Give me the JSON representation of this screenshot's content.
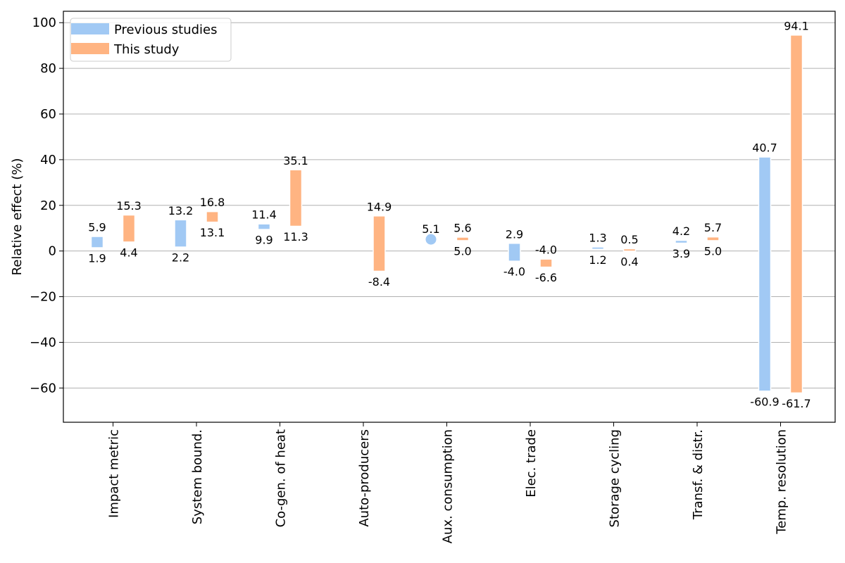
{
  "chart_data": {
    "type": "bar",
    "title": "",
    "xlabel": "",
    "ylabel": "Relative effect (%)",
    "ylim": [
      -75,
      105
    ],
    "yticks": [
      -60,
      -40,
      -20,
      0,
      20,
      40,
      60,
      80,
      100
    ],
    "ytick_labels": [
      "−60",
      "−40",
      "−20",
      "0",
      "20",
      "40",
      "60",
      "80",
      "100"
    ],
    "grid": "y",
    "legend_position": "top-left",
    "categories": [
      "Impact metric",
      "System bound.",
      "Co-gen. of heat",
      "Auto-producers",
      "Aux. consumption",
      "Elec. trade",
      "Storage cycling",
      "Transf. & distr.",
      "Temp. resolution"
    ],
    "series": [
      {
        "name": "Previous studies",
        "color": "#a1c9f4",
        "ranges": [
          {
            "low": 1.9,
            "high": 5.9,
            "low_label": "1.9",
            "high_label": "5.9"
          },
          {
            "low": 2.2,
            "high": 13.2,
            "low_label": "2.2",
            "high_label": "13.2"
          },
          {
            "low": 9.9,
            "high": 11.4,
            "low_label": "9.9",
            "high_label": "11.4"
          },
          null,
          {
            "low": 5.1,
            "high": 5.1,
            "point": true,
            "high_label": "5.1"
          },
          {
            "low": -4.0,
            "high": 2.9,
            "low_label": "-4.0",
            "high_label": "2.9"
          },
          {
            "low": 1.2,
            "high": 1.3,
            "low_label": "1.2",
            "high_label": "1.3"
          },
          {
            "low": 3.9,
            "high": 4.2,
            "low_label": "3.9",
            "high_label": "4.2"
          },
          {
            "low": -60.9,
            "high": 40.7,
            "low_label": "-60.9",
            "high_label": "40.7"
          }
        ]
      },
      {
        "name": "This study",
        "color": "#ffb482",
        "ranges": [
          {
            "low": 4.4,
            "high": 15.3,
            "low_label": "4.4",
            "high_label": "15.3"
          },
          {
            "low": 13.1,
            "high": 16.8,
            "low_label": "13.1",
            "high_label": "16.8"
          },
          {
            "low": 11.3,
            "high": 35.1,
            "low_label": "11.3",
            "high_label": "35.1"
          },
          {
            "low": -8.4,
            "high": 14.9,
            "low_label": "-8.4",
            "high_label": "14.9"
          },
          {
            "low": 5.0,
            "high": 5.6,
            "low_label": "5.0",
            "high_label": "5.6"
          },
          {
            "low": -6.6,
            "high": -4.0,
            "low_label": "-6.6",
            "high_label": "-4.0"
          },
          {
            "low": 0.4,
            "high": 0.5,
            "low_label": "0.4",
            "high_label": "0.5"
          },
          {
            "low": 5.0,
            "high": 5.7,
            "low_label": "5.0",
            "high_label": "5.7"
          },
          {
            "low": -61.7,
            "high": 94.1,
            "low_label": "-61.7",
            "high_label": "94.1"
          }
        ]
      }
    ]
  }
}
